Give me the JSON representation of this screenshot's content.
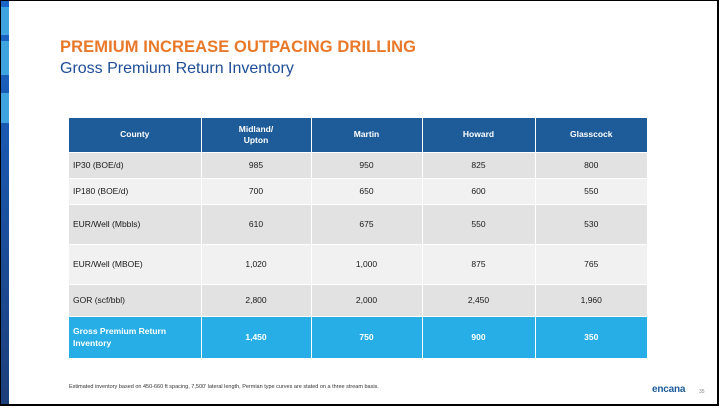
{
  "slide": {
    "title": "PREMIUM INCREASE OUTPACING DRILLING",
    "subtitle": "Gross Premium Return Inventory"
  },
  "table": {
    "headers": [
      "County",
      "Midland/\nUpton",
      "Martin",
      "Howard",
      "Glasscock"
    ],
    "rows": [
      [
        "IP30 (BOE/d)",
        "985",
        "950",
        "825",
        "800"
      ],
      [
        "IP180 (BOE/d)",
        "700",
        "650",
        "600",
        "550"
      ],
      [
        "EUR/Well (Mbbls)",
        "610",
        "675",
        "550",
        "530"
      ],
      [
        "EUR/Well (MBOE)",
        "1,020",
        "1,000",
        "875",
        "765"
      ],
      [
        "GOR (scf/bbl)",
        "2,800",
        "2,000",
        "2,450",
        "1,960"
      ]
    ],
    "total": [
      "Gross Premium Return\nInventory",
      "1,450",
      "750",
      "900",
      "350"
    ]
  },
  "footer": {
    "note": "Estimated inventory based on 450-660 ft spacing, 7,500' lateral length,  Permian type curves are stated on a three stream basis.",
    "logo_main": "encana",
    "page": "35"
  },
  "colors": {
    "title": "#e8792a",
    "subtitle": "#1f4e96",
    "header_bg": "#1d5c99",
    "total_bg": "#27aee6"
  }
}
